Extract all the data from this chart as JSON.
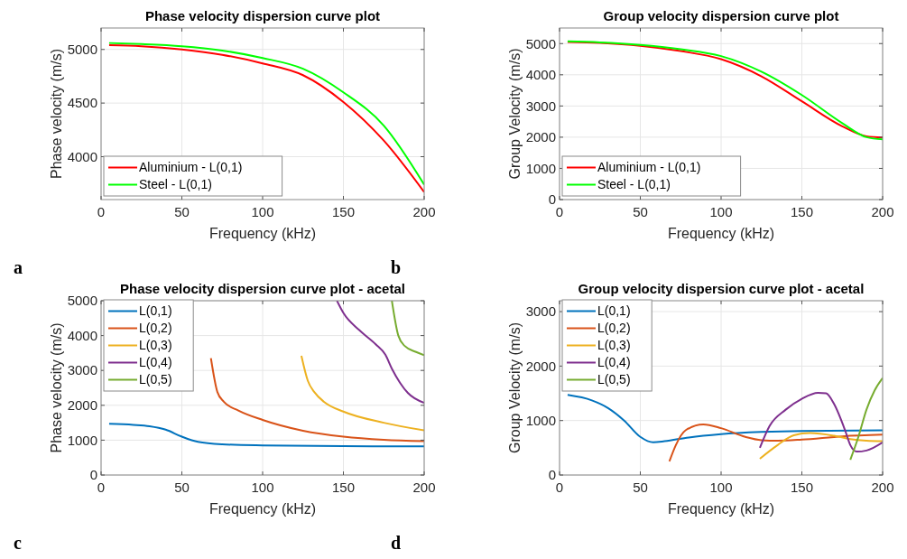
{
  "chart_data": [
    {
      "type": "line",
      "title": "Phase velocity dispersion curve plot",
      "xlabel": "Frequency (kHz)",
      "ylabel": "Phase velocity (m/s)",
      "xlim": [
        0,
        200
      ],
      "xticks": [
        0,
        50,
        100,
        150,
        200
      ],
      "ylim": [
        3600,
        5200
      ],
      "yticks": [
        4000,
        4500,
        5000
      ],
      "grid": true,
      "legend": "bottom left",
      "annotations": [
        "a"
      ],
      "series": [
        {
          "name": "Aluminium - L(0,1)",
          "color": "#ff0000",
          "x": [
            5,
            25,
            50,
            75,
            100,
            125,
            150,
            175,
            200
          ],
          "values": [
            5040,
            5030,
            5000,
            4950,
            4870,
            4760,
            4510,
            4150,
            3670
          ]
        },
        {
          "name": "Steel - L(0,1)",
          "color": "#00ff00",
          "x": [
            5,
            25,
            50,
            75,
            100,
            125,
            150,
            175,
            200
          ],
          "values": [
            5060,
            5050,
            5030,
            4990,
            4920,
            4820,
            4600,
            4290,
            3740
          ]
        }
      ]
    },
    {
      "type": "line",
      "title": "Group velocity dispersion curve plot",
      "xlabel": "Frequency (kHz)",
      "ylabel": "Group Velocity (m/s)",
      "xlim": [
        0,
        200
      ],
      "xticks": [
        0,
        50,
        100,
        150,
        200
      ],
      "ylim": [
        0,
        5500
      ],
      "yticks": [
        0,
        1000,
        2000,
        3000,
        4000,
        5000
      ],
      "grid": true,
      "legend": "bottom left",
      "annotations": [
        "b"
      ],
      "series": [
        {
          "name": "Aluminium - L(0,1)",
          "color": "#ff0000",
          "x": [
            5,
            25,
            50,
            75,
            100,
            125,
            150,
            175,
            190,
            200
          ],
          "values": [
            5050,
            5020,
            4930,
            4760,
            4500,
            3950,
            3150,
            2350,
            2030,
            1990
          ]
        },
        {
          "name": "Steel - L(0,1)",
          "color": "#00ff00",
          "x": [
            5,
            25,
            50,
            75,
            100,
            125,
            150,
            175,
            190,
            200
          ],
          "values": [
            5070,
            5040,
            4960,
            4820,
            4600,
            4100,
            3350,
            2450,
            2000,
            1930
          ]
        }
      ]
    },
    {
      "type": "line",
      "title": "Phase velocity dispersion curve plot - acetal",
      "xlabel": "Frequency (kHz)",
      "ylabel": "Phase velocity (m/s)",
      "xlim": [
        0,
        200
      ],
      "xticks": [
        0,
        50,
        100,
        150,
        200
      ],
      "ylim": [
        0,
        5000
      ],
      "yticks": [
        0,
        1000,
        2000,
        3000,
        4000,
        5000
      ],
      "grid": true,
      "legend": "top left",
      "annotations": [
        "c"
      ],
      "series": [
        {
          "name": "L(0,1)",
          "color": "#0072bd",
          "x": [
            5,
            20,
            30,
            40,
            50,
            60,
            75,
            100,
            150,
            200
          ],
          "values": [
            1470,
            1440,
            1400,
            1300,
            1100,
            950,
            880,
            850,
            830,
            820
          ]
        },
        {
          "name": "L(0,2)",
          "color": "#d95319",
          "x": [
            68,
            72,
            76,
            85,
            100,
            125,
            150,
            175,
            200
          ],
          "values": [
            3350,
            2380,
            2100,
            1850,
            1580,
            1270,
            1100,
            1010,
            970
          ]
        },
        {
          "name": "L(0,3)",
          "color": "#edb120",
          "x": [
            124,
            128,
            132,
            138,
            150,
            175,
            200
          ],
          "values": [
            3420,
            2700,
            2380,
            2100,
            1820,
            1500,
            1280
          ]
        },
        {
          "name": "L(0,4)",
          "color": "#7e2f8e",
          "x": [
            146,
            150,
            160,
            170,
            176,
            180,
            185,
            190,
            200
          ],
          "values": [
            5000,
            4650,
            4150,
            3750,
            3450,
            3050,
            2650,
            2350,
            2070
          ]
        },
        {
          "name": "L(0,5)",
          "color": "#77ac30",
          "x": [
            180,
            184,
            188,
            195,
            200
          ],
          "values": [
            5000,
            4000,
            3700,
            3530,
            3440
          ]
        }
      ]
    },
    {
      "type": "line",
      "title": "Group velocity dispersion curve plot - acetal",
      "xlabel": "Frequency (kHz)",
      "ylabel": "Group Velocity (m/s)",
      "xlim": [
        0,
        200
      ],
      "xticks": [
        0,
        50,
        100,
        150,
        200
      ],
      "ylim": [
        0,
        3200
      ],
      "yticks": [
        0,
        1000,
        2000,
        3000
      ],
      "grid": true,
      "legend": "top left",
      "annotations": [
        "d"
      ],
      "series": [
        {
          "name": "L(0,1)",
          "color": "#0072bd",
          "x": [
            5,
            20,
            30,
            40,
            50,
            58,
            65,
            80,
            100,
            125,
            150,
            200
          ],
          "values": [
            1470,
            1370,
            1230,
            1000,
            700,
            600,
            620,
            690,
            750,
            790,
            810,
            820
          ]
        },
        {
          "name": "L(0,2)",
          "color": "#d95319",
          "x": [
            68,
            72,
            78,
            89,
            100,
            115,
            125,
            135,
            150,
            175,
            200
          ],
          "values": [
            250,
            550,
            820,
            930,
            860,
            700,
            640,
            630,
            650,
            710,
            740
          ]
        },
        {
          "name": "L(0,3)",
          "color": "#edb120",
          "x": [
            124,
            135,
            145,
            155,
            170,
            180,
            190,
            200
          ],
          "values": [
            300,
            550,
            730,
            770,
            720,
            660,
            630,
            620
          ]
        },
        {
          "name": "L(0,4)",
          "color": "#7e2f8e",
          "x": [
            124,
            130,
            140,
            150,
            160,
            165,
            170,
            177,
            180,
            184,
            190,
            200
          ],
          "values": [
            500,
            900,
            1200,
            1400,
            1510,
            1500,
            1300,
            800,
            550,
            430,
            450,
            600
          ]
        },
        {
          "name": "L(0,5)",
          "color": "#77ac30",
          "x": [
            180,
            185,
            190,
            195,
            200
          ],
          "values": [
            280,
            700,
            1200,
            1550,
            1780
          ]
        }
      ]
    }
  ]
}
